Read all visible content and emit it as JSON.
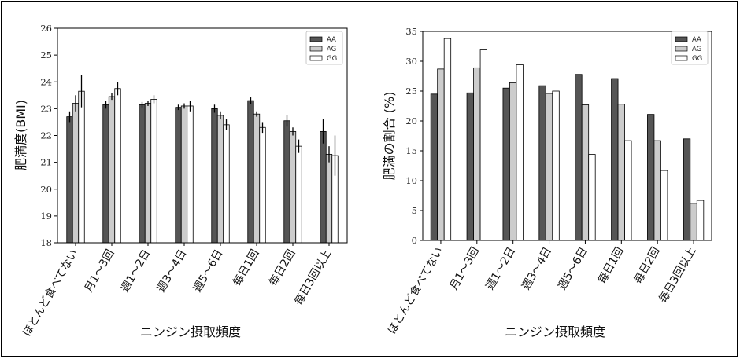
{
  "chart_data": [
    {
      "type": "bar",
      "title": "",
      "xlabel": "ニンジン摂取頻度",
      "ylabel": "肥満度(BMI)",
      "ylim": [
        18,
        26
      ],
      "yticks": [
        18,
        19,
        20,
        21,
        22,
        23,
        24,
        25,
        26
      ],
      "categories": [
        "ほとんど食べてない",
        "月1～3回",
        "週1～2日",
        "週3～4日",
        "週5～6日",
        "毎日1回",
        "毎日2回",
        "毎日3回以上"
      ],
      "series": [
        {
          "name": "AA",
          "color": "#555555",
          "values": [
            22.7,
            23.15,
            23.15,
            23.05,
            23.0,
            23.3,
            22.55,
            22.15
          ],
          "errors": [
            0.2,
            0.15,
            0.1,
            0.1,
            0.15,
            0.12,
            0.22,
            0.45
          ]
        },
        {
          "name": "AG",
          "color": "#cccccc",
          "values": [
            23.2,
            23.45,
            23.2,
            23.1,
            22.75,
            22.8,
            22.15,
            21.3
          ],
          "errors": [
            0.3,
            0.12,
            0.1,
            0.1,
            0.15,
            0.1,
            0.15,
            0.3
          ]
        },
        {
          "name": "GG",
          "color": "#ffffff",
          "values": [
            23.65,
            23.75,
            23.35,
            23.1,
            22.4,
            22.3,
            21.6,
            21.25
          ],
          "errors": [
            0.6,
            0.25,
            0.15,
            0.2,
            0.2,
            0.2,
            0.25,
            0.75
          ]
        }
      ],
      "legend": "top-right",
      "grid": false
    },
    {
      "type": "bar",
      "title": "",
      "xlabel": "ニンジン摂取頻度",
      "ylabel": "肥満の割合 (%)",
      "ylim": [
        0,
        35
      ],
      "yticks": [
        0,
        5,
        10,
        15,
        20,
        25,
        30,
        35
      ],
      "categories": [
        "ほとんど食べてない",
        "月1～3回",
        "週1～2日",
        "週3～4日",
        "週5～6日",
        "毎日1回",
        "毎日2回",
        "毎日3回以上"
      ],
      "series": [
        {
          "name": "AA",
          "color": "#555555",
          "values": [
            24.5,
            24.7,
            25.5,
            25.9,
            27.8,
            27.1,
            21.1,
            17.0
          ]
        },
        {
          "name": "AG",
          "color": "#cccccc",
          "values": [
            28.7,
            28.9,
            26.4,
            24.6,
            22.7,
            22.8,
            16.7,
            6.2
          ]
        },
        {
          "name": "GG",
          "color": "#ffffff",
          "values": [
            33.8,
            31.9,
            29.4,
            25.0,
            14.4,
            16.7,
            11.7,
            6.7
          ]
        }
      ],
      "legend": "top-right",
      "grid": false
    }
  ]
}
